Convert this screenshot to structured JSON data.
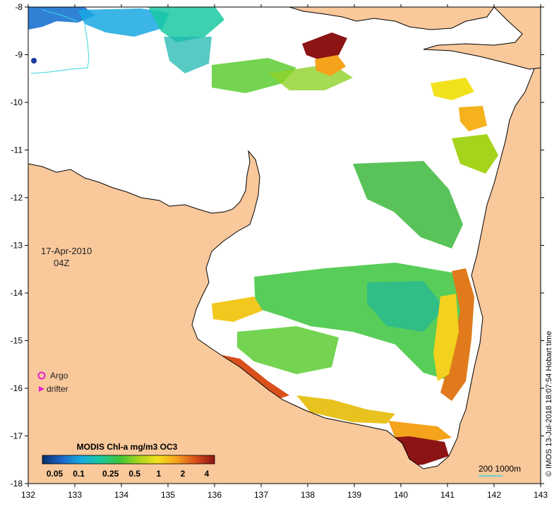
{
  "map": {
    "axes": {
      "lon_range": [
        132,
        143
      ],
      "lat_range": [
        -18,
        -8
      ],
      "lon_ticks": [
        "132",
        "133",
        "134",
        "135",
        "136",
        "137",
        "138",
        "139",
        "140",
        "141",
        "142",
        "143"
      ],
      "lat_ticks": [
        "-8",
        "-9",
        "-10",
        "-11",
        "-12",
        "-13",
        "-14",
        "-15",
        "-16",
        "-17",
        "-18"
      ]
    },
    "date_label": "17-Apr-2010",
    "time_label": "04Z",
    "legend_markers": {
      "argo": "Argo",
      "drifter": "drifter"
    },
    "colorbar": {
      "title": "MODIS Chl-a mg/m3 OC3",
      "tick_labels": [
        "0.05",
        "0.1",
        "0.25",
        "0.5",
        "1",
        "2",
        "4"
      ],
      "colors": [
        "#08306b",
        "#1c64c8",
        "#17a8e0",
        "#19c9a3",
        "#3cc43c",
        "#a4d41c",
        "#f2e21e",
        "#f5a21c",
        "#d9501c",
        "#8c1414"
      ]
    },
    "scale_label": "200  1000m",
    "credit": "© IMOS 13-Jul-2018 18:07:54 Hobart time",
    "colors": {
      "land": "#f9c89b",
      "ocean": "#ffffff",
      "contour": "#39d6e3",
      "argo": "#e020d0",
      "drifter": "#e020d0"
    }
  }
}
